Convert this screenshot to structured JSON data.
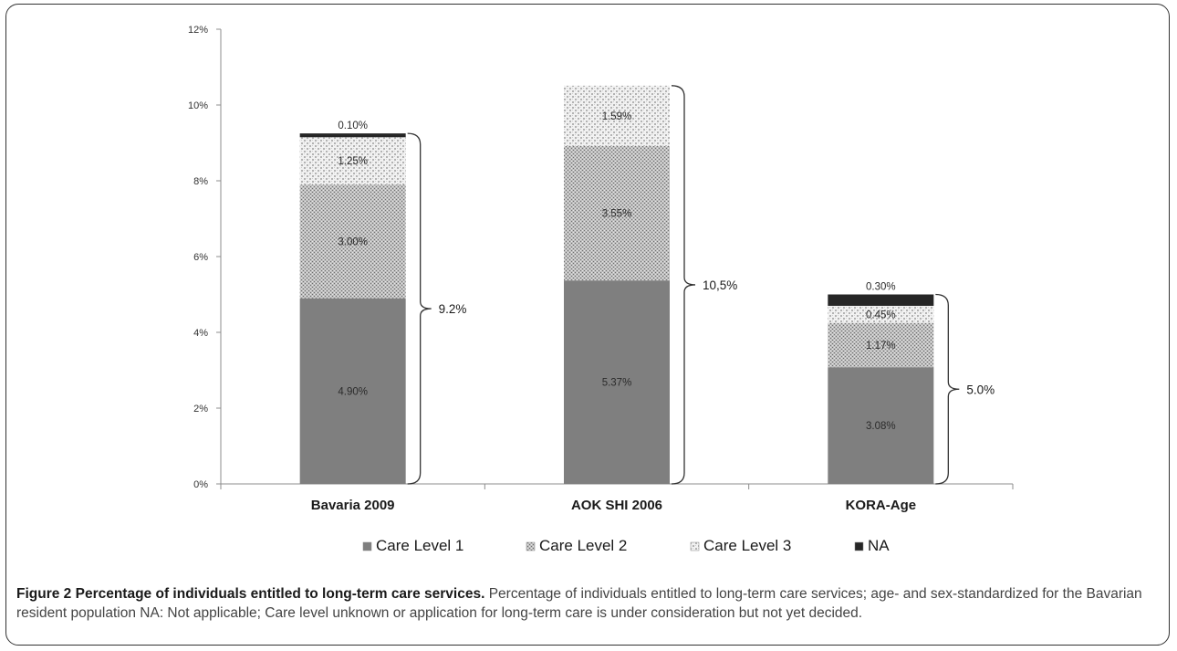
{
  "chart_data": {
    "type": "bar",
    "stacked": true,
    "categories": [
      "Bavaria 2009",
      "AOK SHI 2006",
      "KORA-Age"
    ],
    "series": [
      {
        "name": "Care Level 1",
        "values": [
          4.9,
          5.37,
          3.08
        ],
        "labels": [
          "4.90%",
          "5.37%",
          "3.08%"
        ],
        "pattern": "solid",
        "color": "#7f7f7f"
      },
      {
        "name": "Care Level 2",
        "values": [
          3.0,
          3.55,
          1.17
        ],
        "labels": [
          "3.00%",
          "3.55%",
          "1.17%"
        ],
        "pattern": "dots-dense",
        "color": "#a6a6a6"
      },
      {
        "name": "Care Level 3",
        "values": [
          1.25,
          1.59,
          0.45
        ],
        "labels": [
          "1.25%",
          "1.59%",
          "0.45%"
        ],
        "pattern": "checker-light",
        "color": "#d9d9d9"
      },
      {
        "name": "NA",
        "values": [
          0.1,
          0.0,
          0.3
        ],
        "labels": [
          "0.10%",
          "",
          "0.30%"
        ],
        "pattern": "solid",
        "color": "#262626"
      }
    ],
    "totals": [
      "9.2%",
      "10,5%",
      "5.0%"
    ],
    "y_ticks": [
      "0%",
      "2%",
      "4%",
      "6%",
      "8%",
      "10%",
      "12%"
    ],
    "ylim": [
      0,
      12
    ],
    "ytick_step": 2,
    "legend_position": "bottom",
    "title": "",
    "xlabel": "",
    "ylabel": ""
  },
  "caption": {
    "label": "Figure 2",
    "title": "Percentage of individuals entitled to long-term care services.",
    "text": "Percentage of individuals entitled to long-term care services; age- and sex-standardized for the Bavarian resident population NA: Not applicable; Care level unknown or application for long-term care is under consideration but not yet decided."
  }
}
